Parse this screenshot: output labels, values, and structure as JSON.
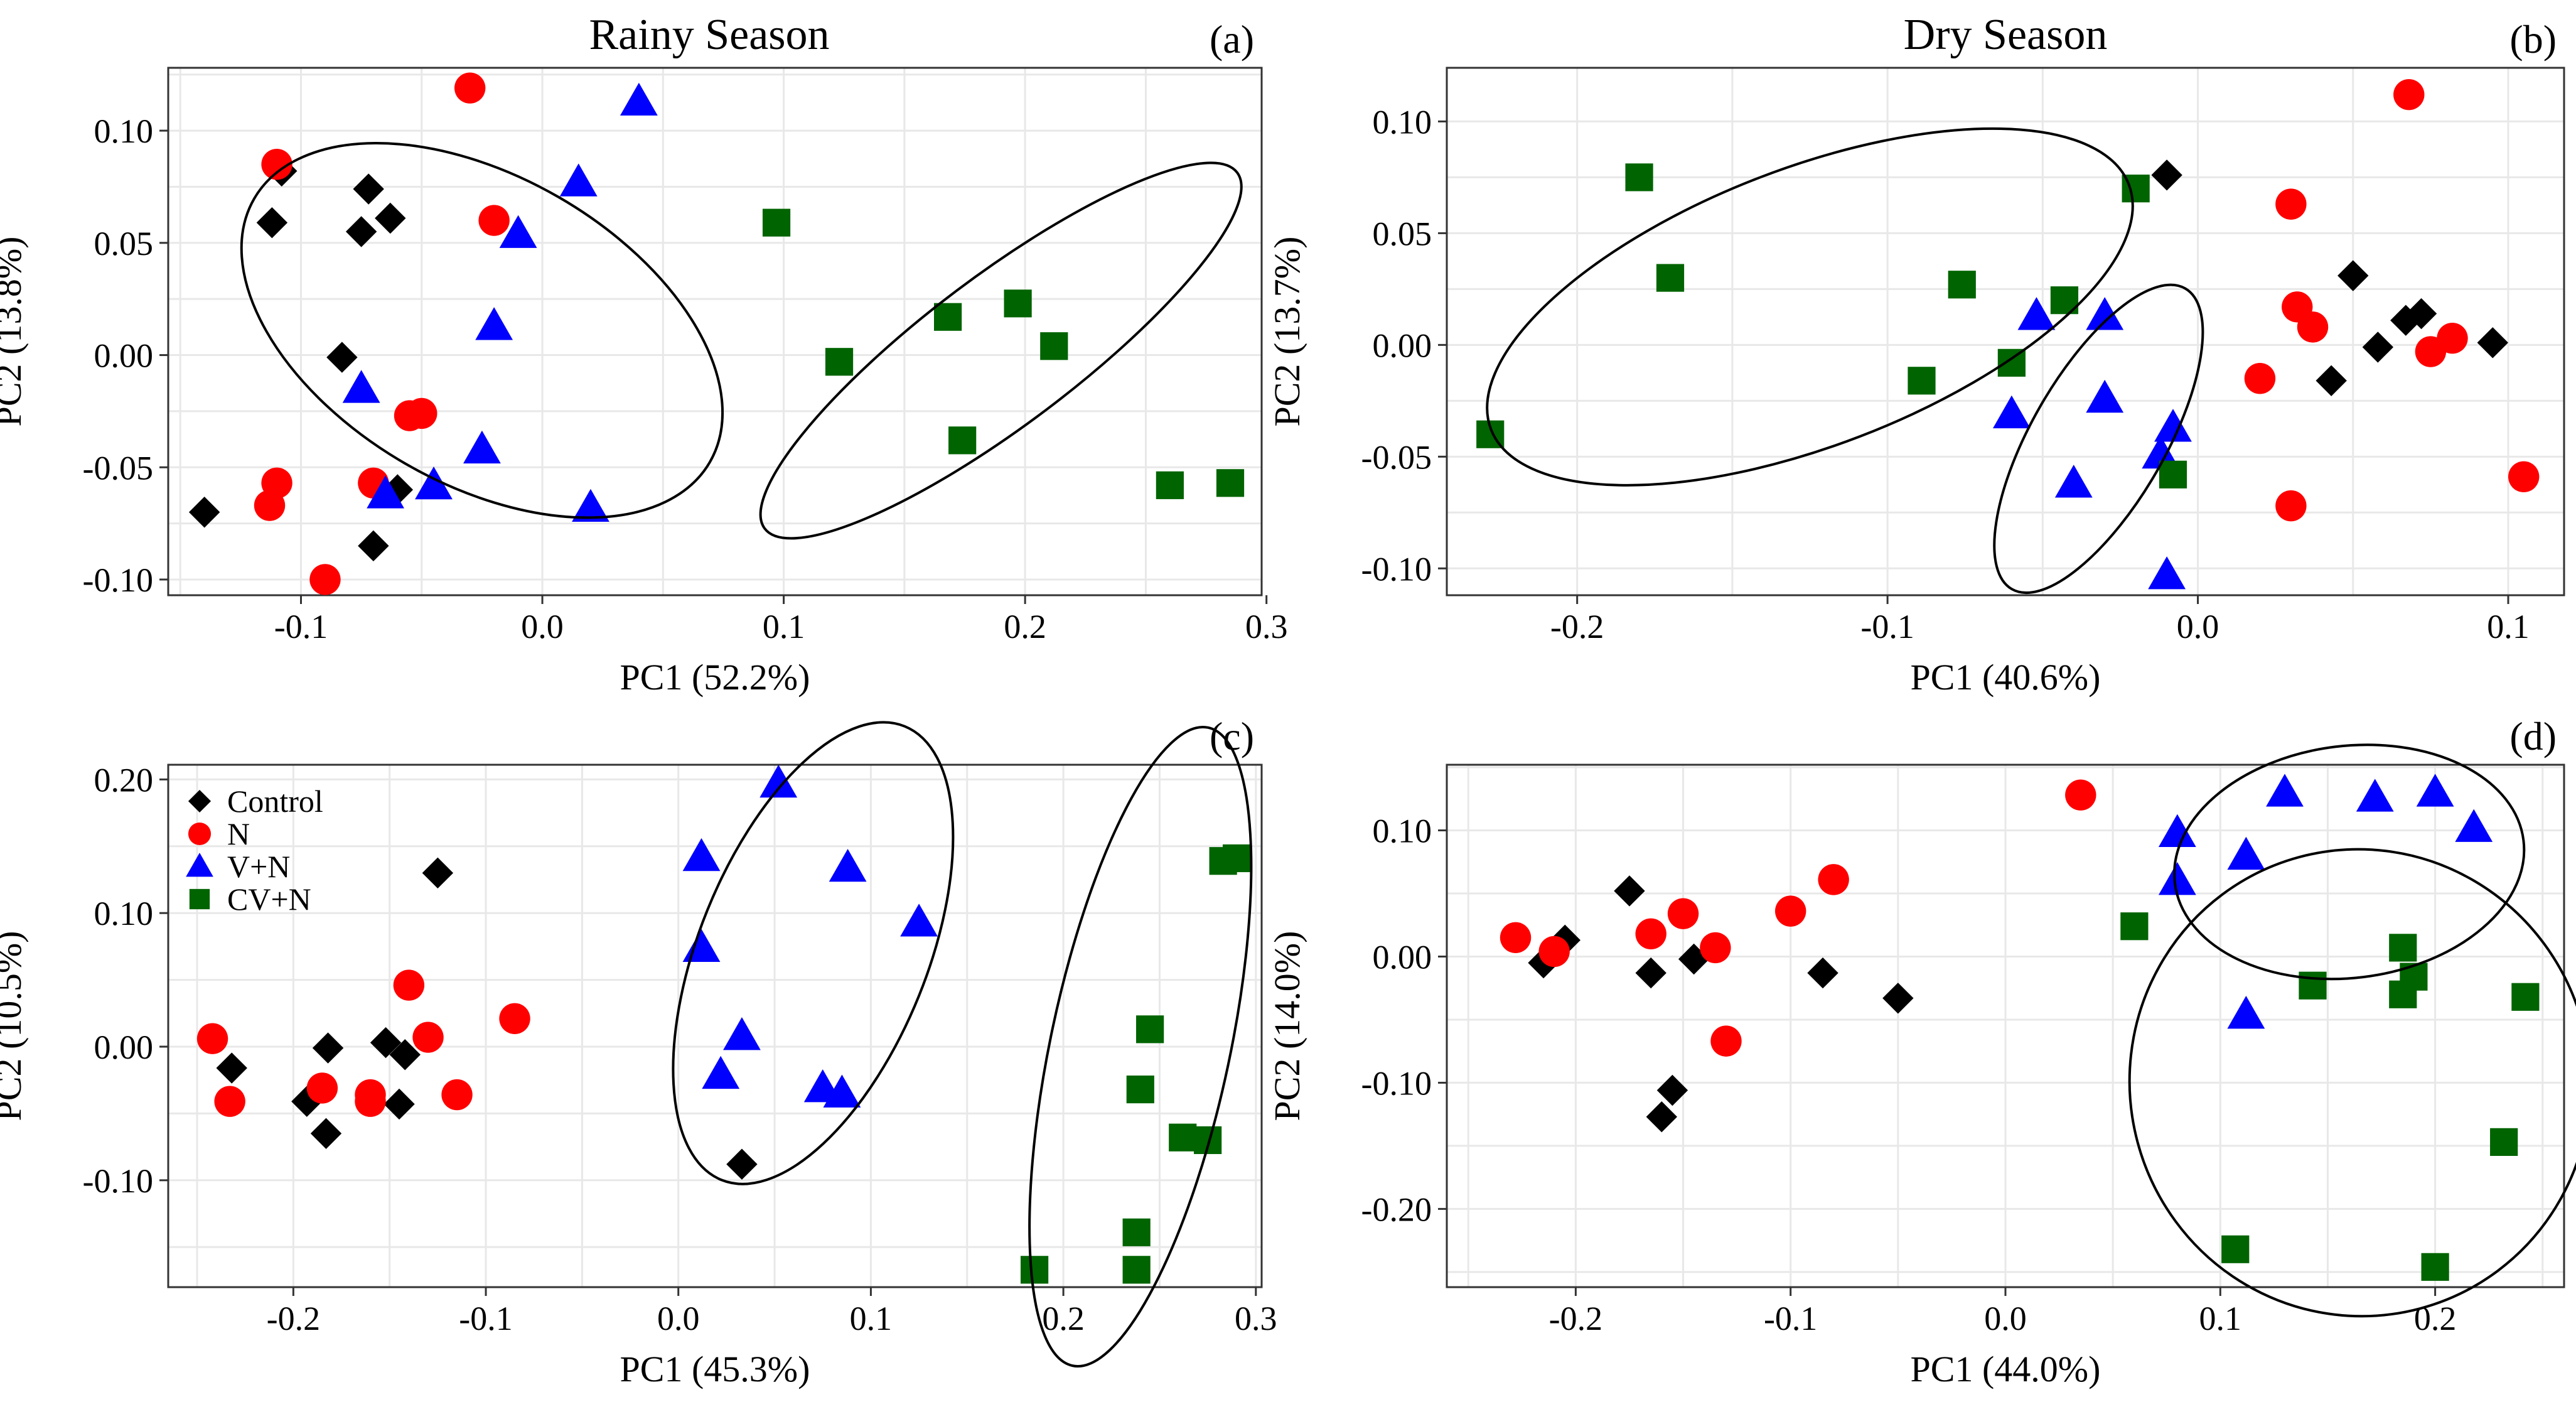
{
  "colors": {
    "Control": "#000000",
    "N": "#ff0000",
    "V+N": "#0000ff",
    "CV+N": "#006400"
  },
  "shapes": {
    "Control": "diamond",
    "N": "circle",
    "V+N": "triangle",
    "CV+N": "square"
  },
  "chart_data": [
    {
      "id": "a",
      "type": "scatter",
      "title": "Rainy Season",
      "letter": "(a)",
      "xlabel": "PC1 (52.2%)",
      "ylabel": "PC2 (13.8%)",
      "xlim": [
        -0.155,
        0.298
      ],
      "ylim": [
        -0.107,
        0.128
      ],
      "xticks": [
        -0.1,
        0.0,
        0.1,
        0.2,
        0.3
      ],
      "xtick_labels": [
        "-0.1",
        "0.0",
        "0.1",
        "0.2",
        "0.3"
      ],
      "yticks": [
        -0.1,
        -0.05,
        0.0,
        0.05,
        0.1
      ],
      "ytick_labels": [
        "-0.10",
        "-0.05",
        "0.00",
        "0.05",
        "0.10"
      ],
      "show_legend": false,
      "series": [
        {
          "name": "Control",
          "points": [
            [
              -0.14,
              -0.07
            ],
            [
              -0.108,
              0.082
            ],
            [
              -0.112,
              0.059
            ],
            [
              -0.072,
              0.074
            ],
            [
              -0.063,
              0.061
            ],
            [
              -0.075,
              0.055
            ],
            [
              -0.083,
              -0.001
            ],
            [
              -0.06,
              -0.06
            ],
            [
              -0.07,
              -0.085
            ]
          ]
        },
        {
          "name": "N",
          "points": [
            [
              -0.03,
              0.119
            ],
            [
              -0.11,
              0.085
            ],
            [
              -0.02,
              0.06
            ],
            [
              -0.05,
              -0.026
            ],
            [
              -0.055,
              -0.027
            ],
            [
              -0.11,
              -0.057
            ],
            [
              -0.113,
              -0.067
            ],
            [
              -0.07,
              -0.057
            ],
            [
              -0.09,
              -0.1
            ]
          ]
        },
        {
          "name": "V+N",
          "points": [
            [
              0.04,
              0.113
            ],
            [
              0.015,
              0.077
            ],
            [
              -0.01,
              0.054
            ],
            [
              -0.02,
              0.013
            ],
            [
              -0.075,
              -0.015
            ],
            [
              -0.025,
              -0.042
            ],
            [
              -0.045,
              -0.058
            ],
            [
              -0.065,
              -0.062
            ],
            [
              0.02,
              -0.068
            ]
          ]
        },
        {
          "name": "CV+N",
          "points": [
            [
              0.097,
              0.059
            ],
            [
              0.168,
              0.017
            ],
            [
              0.197,
              0.023
            ],
            [
              0.212,
              0.004
            ],
            [
              0.123,
              -0.003
            ],
            [
              0.174,
              -0.038
            ],
            [
              0.26,
              -0.058
            ],
            [
              0.285,
              -0.057
            ]
          ]
        }
      ],
      "ellipses": [
        {
          "cx": -0.025,
          "cy": 0.011,
          "rx": 0.066,
          "ry": 0.113,
          "angle": -60
        },
        {
          "cx": 0.19,
          "cy": 0.002,
          "rx": 0.127,
          "ry": 0.032,
          "angle": -37
        }
      ]
    },
    {
      "id": "b",
      "type": "scatter",
      "title": "Dry Season",
      "letter": "(b)",
      "xlabel": "PC1 (40.6%)",
      "ylabel": "PC2 (13.7%)",
      "xlim": [
        -0.242,
        0.118
      ],
      "ylim": [
        -0.112,
        0.124
      ],
      "xticks": [
        -0.2,
        -0.1,
        0.0,
        0.1
      ],
      "xtick_labels": [
        "-0.2",
        "-0.1",
        "0.0",
        "0.1"
      ],
      "yticks": [
        -0.1,
        -0.05,
        0.0,
        0.05,
        0.1
      ],
      "ytick_labels": [
        "-0.10",
        "-0.05",
        "0.00",
        "0.05",
        "0.10"
      ],
      "show_legend": false,
      "series": [
        {
          "name": "Control",
          "points": [
            [
              -0.01,
              0.076
            ],
            [
              0.05,
              0.031
            ],
            [
              0.072,
              0.014
            ],
            [
              0.067,
              0.011
            ],
            [
              0.058,
              -0.001
            ],
            [
              0.095,
              0.001
            ],
            [
              0.043,
              -0.016
            ]
          ]
        },
        {
          "name": "N",
          "points": [
            [
              0.068,
              0.112
            ],
            [
              0.03,
              0.063
            ],
            [
              0.032,
              0.017
            ],
            [
              0.037,
              0.008
            ],
            [
              0.082,
              0.003
            ],
            [
              0.075,
              -0.003
            ],
            [
              0.02,
              -0.015
            ],
            [
              0.105,
              -0.059
            ],
            [
              0.03,
              -0.072
            ]
          ]
        },
        {
          "name": "V+N",
          "points": [
            [
              -0.052,
              0.013
            ],
            [
              -0.03,
              0.013
            ],
            [
              -0.06,
              -0.031
            ],
            [
              -0.03,
              -0.024
            ],
            [
              -0.008,
              -0.037
            ],
            [
              -0.012,
              -0.049
            ],
            [
              -0.04,
              -0.062
            ],
            [
              -0.01,
              -0.103
            ]
          ]
        },
        {
          "name": "CV+N",
          "points": [
            [
              -0.18,
              0.075
            ],
            [
              -0.17,
              0.03
            ],
            [
              -0.02,
              0.07
            ],
            [
              -0.076,
              0.027
            ],
            [
              -0.043,
              0.02
            ],
            [
              -0.06,
              -0.008
            ],
            [
              -0.089,
              -0.016
            ],
            [
              -0.228,
              -0.04
            ],
            [
              -0.008,
              -0.058
            ]
          ]
        }
      ],
      "ellipses": [
        {
          "cx": -0.125,
          "cy": 0.017,
          "rx": 0.128,
          "ry": 0.052,
          "angle": -21
        },
        {
          "cx": -0.032,
          "cy": -0.042,
          "rx": 0.065,
          "ry": 0.025,
          "angle": -60
        }
      ]
    },
    {
      "id": "c",
      "type": "scatter",
      "title": "",
      "letter": "(c)",
      "xlabel": "PC1 (45.3%)",
      "ylabel": "PC2 (10.5%)",
      "xlim": [
        -0.265,
        0.303
      ],
      "ylim": [
        -0.18,
        0.211
      ],
      "xticks": [
        -0.2,
        -0.1,
        0.0,
        0.1,
        0.2,
        0.3
      ],
      "xtick_labels": [
        "-0.2",
        "-0.1",
        "0.0",
        "0.1",
        "0.2",
        "0.3"
      ],
      "yticks": [
        -0.1,
        0.0,
        0.1,
        0.2
      ],
      "ytick_labels": [
        "-0.10",
        "0.00",
        "0.10",
        "0.20"
      ],
      "show_legend": true,
      "legend_position": "top-left",
      "series": [
        {
          "name": "Control",
          "points": [
            [
              -0.125,
              0.13
            ],
            [
              -0.232,
              -0.016
            ],
            [
              -0.182,
              -0.001
            ],
            [
              -0.152,
              0.003
            ],
            [
              -0.142,
              -0.006
            ],
            [
              -0.193,
              -0.041
            ],
            [
              -0.145,
              -0.043
            ],
            [
              -0.183,
              -0.065
            ],
            [
              0.033,
              -0.088
            ]
          ]
        },
        {
          "name": "N",
          "points": [
            [
              -0.085,
              0.021
            ],
            [
              -0.242,
              0.006
            ],
            [
              -0.14,
              0.046
            ],
            [
              -0.13,
              0.007
            ],
            [
              -0.185,
              -0.031
            ],
            [
              -0.16,
              -0.036
            ],
            [
              -0.16,
              -0.041
            ],
            [
              -0.233,
              -0.041
            ],
            [
              -0.115,
              -0.036
            ]
          ]
        },
        {
          "name": "V+N",
          "points": [
            [
              0.052,
              0.197
            ],
            [
              0.012,
              0.142
            ],
            [
              0.088,
              0.134
            ],
            [
              0.125,
              0.093
            ],
            [
              0.012,
              0.074
            ],
            [
              0.033,
              0.008
            ],
            [
              0.022,
              -0.021
            ],
            [
              0.075,
              -0.031
            ],
            [
              0.085,
              -0.035
            ]
          ]
        },
        {
          "name": "CV+N",
          "points": [
            [
              0.29,
              0.141
            ],
            [
              0.283,
              0.139
            ],
            [
              0.245,
              0.013
            ],
            [
              0.24,
              -0.032
            ],
            [
              0.262,
              -0.068
            ],
            [
              0.275,
              -0.07
            ],
            [
              0.238,
              -0.139
            ],
            [
              0.185,
              -0.167
            ],
            [
              0.238,
              -0.167
            ]
          ]
        }
      ],
      "ellipses": [
        {
          "cx": 0.07,
          "cy": 0.07,
          "rx": 0.15,
          "ry": 0.07,
          "angle": -68
        },
        {
          "cx": 0.24,
          "cy": 0.0,
          "rx": 0.2,
          "ry": 0.055,
          "angle": -78
        }
      ]
    },
    {
      "id": "d",
      "type": "scatter",
      "title": "",
      "letter": "(d)",
      "xlabel": "PC1 (44.0%)",
      "ylabel": "PC2 (14.0%)",
      "xlim": [
        -0.26,
        0.26
      ],
      "ylim": [
        -0.262,
        0.152
      ],
      "xticks": [
        -0.2,
        -0.1,
        0.0,
        0.1,
        0.2
      ],
      "xtick_labels": [
        "-0.2",
        "-0.1",
        "0.0",
        "0.1",
        "0.2"
      ],
      "yticks": [
        -0.2,
        -0.1,
        0.0,
        0.1
      ],
      "ytick_labels": [
        "-0.20",
        "-0.10",
        "0.00",
        "0.10"
      ],
      "show_legend": false,
      "series": [
        {
          "name": "Control",
          "points": [
            [
              -0.175,
              0.052
            ],
            [
              -0.205,
              0.013
            ],
            [
              -0.215,
              -0.005
            ],
            [
              -0.165,
              -0.013
            ],
            [
              -0.145,
              -0.002
            ],
            [
              -0.085,
              -0.013
            ],
            [
              -0.05,
              -0.033
            ],
            [
              -0.155,
              -0.106
            ],
            [
              -0.16,
              -0.127
            ]
          ]
        },
        {
          "name": "N",
          "points": [
            [
              0.035,
              0.128
            ],
            [
              -0.08,
              0.061
            ],
            [
              -0.1,
              0.036
            ],
            [
              -0.15,
              0.034
            ],
            [
              -0.165,
              0.018
            ],
            [
              -0.228,
              0.015
            ],
            [
              -0.21,
              0.004
            ],
            [
              -0.135,
              0.007
            ],
            [
              -0.13,
              -0.067
            ]
          ]
        },
        {
          "name": "V+N",
          "points": [
            [
              0.13,
              0.13
            ],
            [
              0.2,
              0.13
            ],
            [
              0.172,
              0.126
            ],
            [
              0.08,
              0.098
            ],
            [
              0.218,
              0.102
            ],
            [
              0.112,
              0.08
            ],
            [
              0.08,
              0.06
            ],
            [
              0.112,
              -0.046
            ]
          ]
        },
        {
          "name": "CV+N",
          "points": [
            [
              0.06,
              0.024
            ],
            [
              0.185,
              0.007
            ],
            [
              0.143,
              -0.023
            ],
            [
              0.19,
              -0.016
            ],
            [
              0.185,
              -0.03
            ],
            [
              0.242,
              -0.032
            ],
            [
              0.232,
              -0.147
            ],
            [
              0.107,
              -0.232
            ],
            [
              0.2,
              -0.246
            ]
          ]
        }
      ],
      "ellipses": [
        {
          "cx": 0.16,
          "cy": 0.075,
          "rx": 0.103,
          "ry": 0.068,
          "angle": -7
        },
        {
          "cx": 0.165,
          "cy": -0.1,
          "rx": 0.135,
          "ry": 0.137,
          "angle": -15
        }
      ]
    }
  ]
}
